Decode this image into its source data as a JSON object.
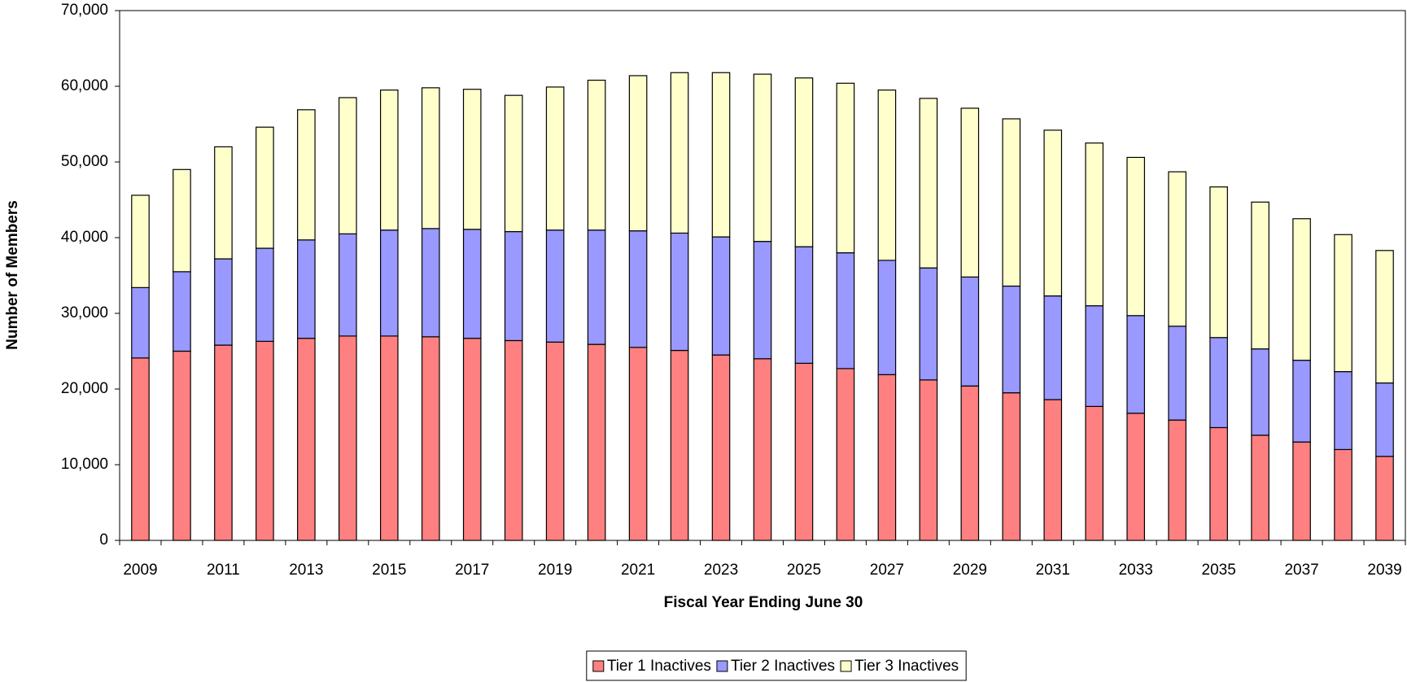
{
  "chart_data": {
    "type": "stacked_bar",
    "x_label": "Fiscal Year Ending June 30",
    "y_label": "Number of Members",
    "categories": [
      "2009",
      null,
      "2011",
      null,
      "2013",
      null,
      "2015",
      null,
      "2017",
      null,
      "2019",
      null,
      "2021",
      null,
      "2023",
      null,
      "2025",
      null,
      "2027",
      null,
      "2029",
      null,
      "2031",
      null,
      "2033",
      null,
      "2035",
      null,
      "2037",
      null,
      "2039"
    ],
    "series": [
      {
        "name": "Tier 1 Inactives",
        "color": "#ff8080",
        "values": [
          24100,
          25000,
          25800,
          26300,
          26700,
          27000,
          27000,
          26900,
          26700,
          26400,
          26200,
          25900,
          25500,
          25100,
          24500,
          24000,
          23400,
          22700,
          21900,
          21200,
          20400,
          19500,
          18600,
          17700,
          16800,
          15900,
          14900,
          13900,
          13000,
          12000,
          11100
        ]
      },
      {
        "name": "Tier 2 Inactives",
        "color": "#9999ff",
        "values": [
          9300,
          10500,
          11400,
          12300,
          13000,
          13500,
          14000,
          14300,
          14400,
          14400,
          14800,
          15100,
          15400,
          15500,
          15600,
          15500,
          15400,
          15300,
          15100,
          14800,
          14400,
          14100,
          13700,
          13300,
          12900,
          12400,
          11900,
          11400,
          10800,
          10300,
          9700
        ]
      },
      {
        "name": "Tier 3 Inactives",
        "color": "#ffffcc",
        "values": [
          12200,
          13500,
          14800,
          16000,
          17200,
          18000,
          18500,
          18600,
          18500,
          18000,
          18900,
          19800,
          20500,
          21200,
          21700,
          22100,
          22300,
          22400,
          22500,
          22400,
          22300,
          22100,
          21900,
          21500,
          20900,
          20400,
          19900,
          19400,
          18700,
          18100,
          17500
        ]
      }
    ],
    "ylim": [
      0,
      70000
    ],
    "yticks": [
      0,
      {
        "value": 10000,
        "label": "10,000"
      },
      {
        "value": 20000,
        "label": "20,000"
      },
      {
        "value": 30000,
        "label": "30,000"
      },
      {
        "value": 40000,
        "label": "40,000"
      },
      {
        "value": 50000,
        "label": "50,000"
      },
      {
        "value": 60000,
        "label": "60,000"
      },
      {
        "value": 70000,
        "label": "70,000"
      }
    ],
    "grid": false,
    "legend": "bottom"
  }
}
